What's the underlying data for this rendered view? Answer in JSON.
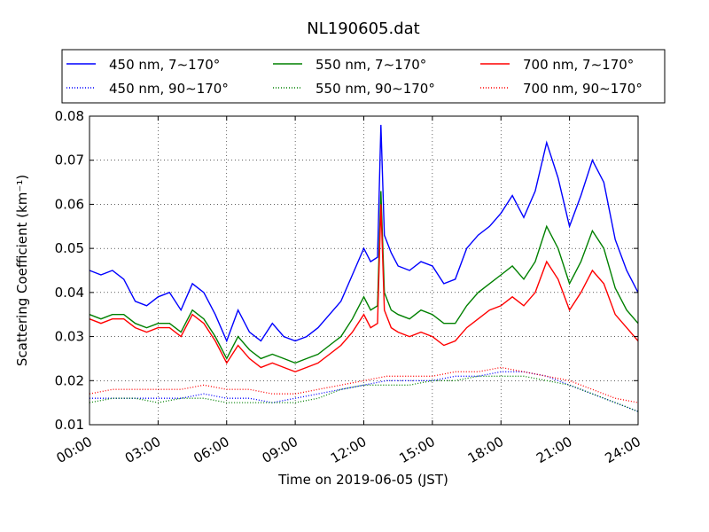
{
  "chart_data": {
    "type": "line",
    "title": "NL190605.dat",
    "xlabel": "Time on 2019-06-05 (JST)",
    "ylabel": "Scattering Coefficient (km⁻¹)",
    "xlim": [
      0,
      24
    ],
    "ylim": [
      0.01,
      0.08
    ],
    "x_tick_labels": [
      "00:00",
      "03:00",
      "06:00",
      "09:00",
      "12:00",
      "15:00",
      "18:00",
      "21:00",
      "24:00"
    ],
    "y_tick_labels": [
      "0.01",
      "0.02",
      "0.03",
      "0.04",
      "0.05",
      "0.06",
      "0.07",
      "0.08"
    ],
    "grid": true,
    "legend_position": "top",
    "series": [
      {
        "name": "450 nm, 7∼170°",
        "color": "#0000ff",
        "style": "solid",
        "x": [
          0,
          0.5,
          1,
          1.5,
          2,
          2.5,
          3,
          3.5,
          4,
          4.5,
          5,
          5.5,
          6,
          6.5,
          7,
          7.5,
          8,
          8.5,
          9,
          9.5,
          10,
          10.5,
          11,
          11.5,
          12,
          12.3,
          12.6,
          12.75,
          12.9,
          13.2,
          13.5,
          14,
          14.5,
          15,
          15.5,
          16,
          16.5,
          17,
          17.5,
          18,
          18.5,
          19,
          19.5,
          20,
          20.5,
          21,
          21.5,
          22,
          22.5,
          23,
          23.5,
          24
        ],
        "y": [
          0.045,
          0.044,
          0.045,
          0.043,
          0.038,
          0.037,
          0.039,
          0.04,
          0.036,
          0.042,
          0.04,
          0.035,
          0.029,
          0.036,
          0.031,
          0.029,
          0.033,
          0.03,
          0.029,
          0.03,
          0.032,
          0.035,
          0.038,
          0.044,
          0.05,
          0.047,
          0.048,
          0.078,
          0.053,
          0.049,
          0.046,
          0.045,
          0.047,
          0.046,
          0.042,
          0.043,
          0.05,
          0.053,
          0.055,
          0.058,
          0.062,
          0.057,
          0.063,
          0.074,
          0.066,
          0.055,
          0.062,
          0.07,
          0.065,
          0.052,
          0.045,
          0.04
        ]
      },
      {
        "name": "550 nm, 7∼170°",
        "color": "#008000",
        "style": "solid",
        "x": [
          0,
          0.5,
          1,
          1.5,
          2,
          2.5,
          3,
          3.5,
          4,
          4.5,
          5,
          5.5,
          6,
          6.5,
          7,
          7.5,
          8,
          8.5,
          9,
          9.5,
          10,
          10.5,
          11,
          11.5,
          12,
          12.3,
          12.6,
          12.75,
          12.9,
          13.2,
          13.5,
          14,
          14.5,
          15,
          15.5,
          16,
          16.5,
          17,
          17.5,
          18,
          18.5,
          19,
          19.5,
          20,
          20.5,
          21,
          21.5,
          22,
          22.5,
          23,
          23.5,
          24
        ],
        "y": [
          0.035,
          0.034,
          0.035,
          0.035,
          0.033,
          0.032,
          0.033,
          0.033,
          0.031,
          0.036,
          0.034,
          0.03,
          0.025,
          0.03,
          0.027,
          0.025,
          0.026,
          0.025,
          0.024,
          0.025,
          0.026,
          0.028,
          0.03,
          0.034,
          0.039,
          0.036,
          0.037,
          0.063,
          0.04,
          0.036,
          0.035,
          0.034,
          0.036,
          0.035,
          0.033,
          0.033,
          0.037,
          0.04,
          0.042,
          0.044,
          0.046,
          0.043,
          0.047,
          0.055,
          0.05,
          0.042,
          0.047,
          0.054,
          0.05,
          0.041,
          0.036,
          0.033
        ]
      },
      {
        "name": "700 nm, 7∼170°",
        "color": "#ff0000",
        "style": "solid",
        "x": [
          0,
          0.5,
          1,
          1.5,
          2,
          2.5,
          3,
          3.5,
          4,
          4.5,
          5,
          5.5,
          6,
          6.5,
          7,
          7.5,
          8,
          8.5,
          9,
          9.5,
          10,
          10.5,
          11,
          11.5,
          12,
          12.3,
          12.6,
          12.75,
          12.9,
          13.2,
          13.5,
          14,
          14.5,
          15,
          15.5,
          16,
          16.5,
          17,
          17.5,
          18,
          18.5,
          19,
          19.5,
          20,
          20.5,
          21,
          21.5,
          22,
          22.5,
          23,
          23.5,
          24
        ],
        "y": [
          0.034,
          0.033,
          0.034,
          0.034,
          0.032,
          0.031,
          0.032,
          0.032,
          0.03,
          0.035,
          0.033,
          0.029,
          0.024,
          0.028,
          0.025,
          0.023,
          0.024,
          0.023,
          0.022,
          0.023,
          0.024,
          0.026,
          0.028,
          0.031,
          0.035,
          0.032,
          0.033,
          0.06,
          0.036,
          0.032,
          0.031,
          0.03,
          0.031,
          0.03,
          0.028,
          0.029,
          0.032,
          0.034,
          0.036,
          0.037,
          0.039,
          0.037,
          0.04,
          0.047,
          0.043,
          0.036,
          0.04,
          0.045,
          0.042,
          0.035,
          0.032,
          0.029
        ]
      },
      {
        "name": "450 nm, 90∼170°",
        "color": "#0000ff",
        "style": "dotted",
        "x": [
          0,
          1,
          2,
          3,
          4,
          5,
          6,
          7,
          8,
          9,
          10,
          11,
          12,
          13,
          14,
          15,
          16,
          17,
          18,
          19,
          20,
          21,
          22,
          23,
          24
        ],
        "y": [
          0.016,
          0.016,
          0.016,
          0.016,
          0.016,
          0.017,
          0.016,
          0.016,
          0.015,
          0.016,
          0.017,
          0.018,
          0.019,
          0.02,
          0.02,
          0.02,
          0.021,
          0.021,
          0.022,
          0.022,
          0.021,
          0.019,
          0.017,
          0.015,
          0.013
        ]
      },
      {
        "name": "550 nm, 90∼170°",
        "color": "#008000",
        "style": "dotted",
        "x": [
          0,
          1,
          2,
          3,
          4,
          5,
          6,
          7,
          8,
          9,
          10,
          11,
          12,
          13,
          14,
          15,
          16,
          17,
          18,
          19,
          20,
          21,
          22,
          23,
          24
        ],
        "y": [
          0.015,
          0.016,
          0.016,
          0.015,
          0.016,
          0.016,
          0.015,
          0.015,
          0.015,
          0.015,
          0.016,
          0.018,
          0.019,
          0.019,
          0.019,
          0.02,
          0.02,
          0.021,
          0.021,
          0.021,
          0.02,
          0.019,
          0.017,
          0.015,
          0.013
        ]
      },
      {
        "name": "700 nm, 90∼170°",
        "color": "#ff0000",
        "style": "dotted",
        "x": [
          0,
          1,
          2,
          3,
          4,
          5,
          6,
          7,
          8,
          9,
          10,
          11,
          12,
          13,
          14,
          15,
          16,
          17,
          18,
          19,
          20,
          21,
          22,
          23,
          24
        ],
        "y": [
          0.017,
          0.018,
          0.018,
          0.018,
          0.018,
          0.019,
          0.018,
          0.018,
          0.017,
          0.017,
          0.018,
          0.019,
          0.02,
          0.021,
          0.021,
          0.021,
          0.022,
          0.022,
          0.023,
          0.022,
          0.021,
          0.02,
          0.018,
          0.016,
          0.015
        ]
      }
    ]
  }
}
